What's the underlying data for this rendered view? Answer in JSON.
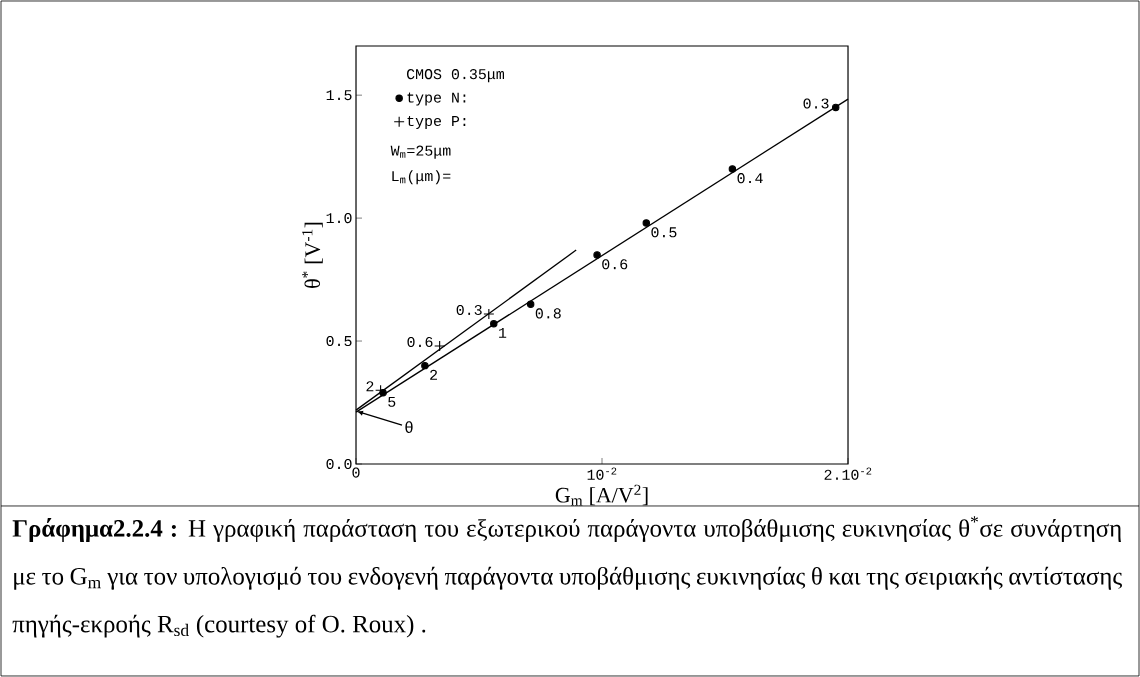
{
  "chart_data": {
    "type": "scatter",
    "xlabel": "G$_{m}$ [A/V$^{2}$]",
    "ylabel": "θ$^{*}$ [V$^{-1}$]",
    "legend_title": "CMOS 0.35μm",
    "legend": "top left",
    "xlim": [
      0,
      0.02
    ],
    "ylim": [
      0,
      1.7
    ],
    "xticks": [
      0,
      {
        "value": 0.01,
        "label": "10$^{-2}$"
      },
      {
        "value": 0.02,
        "label": "2.10$^{-2}$"
      }
    ],
    "yticks": [
      {
        "value": 0,
        "label": "0.0"
      },
      {
        "value": 0.5,
        "label": "0.5"
      },
      {
        "value": 1.0,
        "label": "1.0"
      },
      {
        "value": 1.5,
        "label": "1.5"
      }
    ],
    "series": [
      {
        "name": "type N:",
        "marker": "circle",
        "color": "#000000",
        "x": [
          0.0011,
          0.0028,
          0.0056,
          0.0071,
          0.0098,
          0.0118,
          0.0153,
          0.0195
        ],
        "values": [
          0.29,
          0.4,
          0.57,
          0.65,
          0.85,
          0.98,
          1.2,
          1.45
        ]
      },
      {
        "name": "type P:",
        "marker": "cross",
        "color": "#000000",
        "x": [
          0.001,
          0.0034,
          0.0054
        ],
        "values": [
          0.3,
          0.48,
          0.61
        ]
      },
      {
        "type": "line",
        "marker": "none",
        "color": "#000000",
        "x": [
          0,
          0.02
        ],
        "values": [
          0.211,
          1.484
        ]
      },
      {
        "type": "line",
        "marker": "none",
        "color": "#000000",
        "x": [
          0,
          0.00895
        ],
        "values": [
          0.219,
          0.87
        ]
      }
    ],
    "annotations": [
      "**Γράφημα2.2.4 :** Η γραφική παράσταση του εξωτερικού παράγοντα υποβάθμισης ευκινησίας θ$^{*}$σε συνάρτηση με το G$_{m}$ για τον υπολογισμό του ενδογενή παράγοντα υποβάθμισης ευκινησίας θ και της σειριακής αντίστασης πηγής-εκροής R$_{sd}$ (courtesy of O. Roux) .",
      "W$_{m}$=25μm",
      "L$_{m}$(μm)=",
      {
        "text": "θ",
        "x": 0,
        "y": 0.215
      },
      {
        "text": "5",
        "x": 0.0011,
        "y": 0.29
      },
      {
        "text": "2",
        "x": 0.0028,
        "y": 0.4
      },
      {
        "text": "1",
        "x": 0.0056,
        "y": 0.57
      },
      {
        "text": "0.8",
        "x": 0.0071,
        "y": 0.65
      },
      {
        "text": "0.6",
        "x": 0.0098,
        "y": 0.85
      },
      {
        "text": "0.5",
        "x": 0.0118,
        "y": 0.98
      },
      {
        "text": "0.4",
        "x": 0.0153,
        "y": 1.2
      },
      {
        "text": "0.3",
        "x": 0.0195,
        "y": 1.45
      },
      {
        "text": "2",
        "x": 0.001,
        "y": 0.3
      },
      {
        "text": "0.6",
        "x": 0.0034,
        "y": 0.48
      },
      {
        "text": "0.3",
        "x": 0.0054,
        "y": 0.61
      }
    ]
  }
}
